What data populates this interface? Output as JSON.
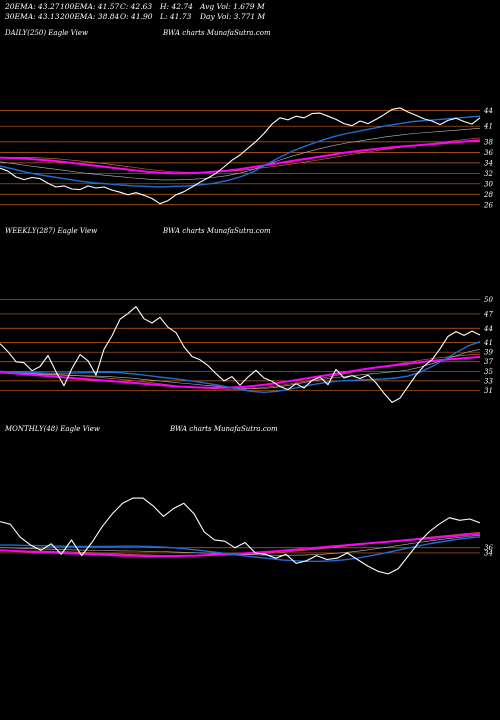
{
  "header": {
    "row1": [
      "20EMA: 43.27",
      "100EMA: 41.57",
      "C: 42.63",
      "H: 42.74",
      "Avg Vol: 1.679 M"
    ],
    "row2": [
      "30EMA: 43.13",
      "200EMA: 38.84",
      "O: 41.90",
      "L: 41.73",
      "Day Vol: 3.771 M"
    ]
  },
  "colors": {
    "background": "#000000",
    "price": "#ffffff",
    "grid": "#c8641e",
    "ema_short": "#1e6ed2",
    "ema_long": "#ff00ff",
    "ema_mid": "#c86432",
    "text": "#ffffff"
  },
  "chart_data": [
    {
      "type": "line",
      "panel_label": "DAILY(250) Eagle View",
      "source": "BWA charts MunafaSutra.com",
      "y_ticks": [
        44,
        41,
        38,
        36,
        34,
        32,
        30,
        28,
        26
      ],
      "ylim": [
        25,
        46
      ],
      "grid": true,
      "price": [
        33.0,
        32.4,
        31.3,
        30.8,
        31.2,
        31.0,
        30.1,
        29.4,
        29.6,
        29.0,
        28.9,
        29.6,
        29.2,
        29.4,
        28.8,
        28.4,
        27.9,
        28.3,
        27.8,
        27.2,
        26.2,
        26.8,
        27.9,
        28.5,
        29.4,
        30.3,
        31.1,
        32.0,
        33.2,
        34.5,
        35.5,
        36.8,
        38.1,
        39.6,
        41.4,
        42.6,
        42.2,
        42.9,
        42.6,
        43.4,
        43.5,
        42.9,
        42.3,
        41.5,
        41.1,
        42.0,
        41.5,
        42.3,
        43.2,
        44.2,
        44.5,
        43.7,
        43.1,
        42.4,
        42.0,
        41.3,
        42.1,
        42.5,
        41.9,
        41.4,
        42.6
      ],
      "ema_short": [
        33.4,
        32.8,
        32.2,
        31.7,
        31.3,
        30.9,
        30.5,
        30.2,
        30.0,
        29.8,
        29.6,
        29.5,
        29.4,
        29.5,
        29.6,
        29.8,
        30.1,
        30.6,
        31.3,
        32.3,
        33.7,
        35.1,
        36.3,
        37.3,
        38.2,
        39.0,
        39.6,
        40.1,
        40.6,
        41.1,
        41.5,
        41.9,
        42.1,
        42.3,
        42.5,
        42.7,
        42.9
      ],
      "ema_long": [
        35.0,
        34.9,
        34.8,
        34.6,
        34.4,
        34.1,
        33.8,
        33.5,
        33.2,
        32.9,
        32.6,
        32.3,
        32.1,
        32.0,
        32.0,
        32.1,
        32.3,
        32.5,
        32.8,
        33.2,
        33.6,
        34.0,
        34.4,
        34.8,
        35.2,
        35.6,
        36.0,
        36.3,
        36.6,
        36.9,
        37.1,
        37.3,
        37.5,
        37.7,
        37.9,
        38.1,
        38.3
      ]
    },
    {
      "type": "line",
      "panel_label": "WEEKLY(287) Eagle View",
      "source": "BWA charts MunafaSutra.com",
      "y_ticks": [
        50,
        47,
        44,
        41,
        39,
        37,
        35,
        33,
        31
      ],
      "ylim": [
        29,
        52
      ],
      "grid": true,
      "price": [
        40.8,
        39.1,
        37.0,
        36.8,
        35.1,
        36.0,
        38.3,
        34.9,
        32.0,
        35.6,
        38.5,
        37.2,
        34.2,
        39.6,
        42.4,
        45.9,
        47.1,
        48.5,
        46.0,
        45.1,
        46.3,
        44.2,
        43.1,
        40.1,
        38.1,
        37.4,
        36.2,
        34.5,
        33.0,
        33.9,
        32.1,
        33.8,
        35.2,
        33.6,
        32.9,
        31.8,
        31.2,
        32.4,
        31.5,
        33.1,
        33.8,
        32.2,
        35.4,
        33.6,
        34.1,
        33.5,
        34.2,
        32.6,
        30.4,
        28.5,
        29.4,
        31.8,
        34.2,
        36.1,
        37.4,
        39.7,
        42.3,
        43.3,
        42.5,
        43.4,
        42.6
      ],
      "ema_short": [
        35.0,
        34.9,
        34.8,
        34.7,
        34.6,
        34.6,
        34.6,
        34.7,
        34.8,
        34.8,
        34.7,
        34.5,
        34.2,
        33.9,
        33.6,
        33.3,
        33.0,
        32.6,
        32.2,
        31.7,
        31.2,
        30.8,
        30.6,
        30.8,
        31.2,
        31.7,
        32.2,
        32.6,
        32.9,
        33.1,
        33.2,
        33.3,
        33.4,
        33.6,
        34.0,
        34.8,
        36.0,
        37.4,
        38.9,
        40.3,
        41.2
      ],
      "ema_long": [
        34.8,
        34.6,
        34.4,
        34.2,
        34.0,
        33.8,
        33.6,
        33.4,
        33.2,
        33.0,
        32.8,
        32.6,
        32.4,
        32.2,
        32.0,
        31.8,
        31.7,
        31.6,
        31.6,
        31.6,
        31.7,
        31.9,
        32.2,
        32.5,
        32.9,
        33.3,
        33.7,
        34.1,
        34.5,
        34.9,
        35.3,
        35.7,
        36.0,
        36.3,
        36.6,
        36.9,
        37.2,
        37.4,
        37.6,
        37.8,
        38.0
      ]
    },
    {
      "type": "line",
      "panel_label": "MONTHLY(48) Eagle View",
      "source": "BWA charts MunafaSutra.com",
      "y_ticks": [
        36,
        34
      ],
      "ylim": [
        16,
        60
      ],
      "grid": true,
      "price": [
        46.0,
        45.0,
        40.0,
        37.0,
        35.0,
        37.5,
        33.5,
        39.0,
        33.0,
        38.0,
        44.0,
        49.0,
        53.0,
        55.0,
        55.0,
        52.0,
        48.0,
        51.0,
        53.0,
        49.0,
        42.0,
        39.0,
        38.5,
        36.0,
        38.0,
        34.0,
        33.5,
        32.0,
        33.5,
        30.0,
        31.0,
        33.0,
        31.5,
        32.0,
        34.0,
        31.5,
        29.0,
        27.0,
        26.0,
        28.0,
        33.0,
        38.0,
        42.0,
        45.0,
        47.5,
        46.5,
        47.0,
        45.5
      ],
      "ema_short": [
        37.0,
        37.0,
        36.9,
        36.8,
        36.7,
        36.6,
        36.5,
        36.5,
        36.5,
        36.5,
        36.6,
        36.6,
        36.5,
        36.3,
        36.0,
        35.6,
        35.1,
        34.6,
        34.0,
        33.4,
        32.8,
        32.3,
        31.8,
        31.3,
        31.0,
        30.8,
        30.8,
        31.0,
        31.4,
        32.0,
        32.8,
        33.7,
        34.7,
        35.7,
        36.7,
        37.6,
        38.4,
        39.1,
        39.7,
        40.2
      ],
      "ema_long": [
        35.0,
        34.8,
        34.6,
        34.4,
        34.2,
        34.0,
        33.8,
        33.6,
        33.4,
        33.2,
        33.0,
        32.9,
        32.8,
        32.8,
        32.8,
        32.9,
        33.0,
        33.2,
        33.4,
        33.6,
        33.9,
        34.2,
        34.5,
        34.9,
        35.3,
        35.7,
        36.1,
        36.5,
        36.9,
        37.3,
        37.7,
        38.1,
        38.5,
        38.9,
        39.3,
        39.7,
        40.1,
        40.5,
        40.9,
        41.3
      ]
    }
  ]
}
